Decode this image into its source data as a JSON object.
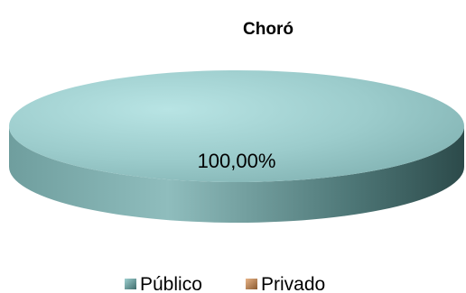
{
  "chart_data": {
    "type": "pie",
    "title": "Choró",
    "style": "3d",
    "slices": [
      {
        "label": "Público",
        "value": 100.0,
        "display": "100,00%",
        "color": "#8fc4c4"
      },
      {
        "label": "Privado",
        "value": 0.0,
        "display": "",
        "color": "#c8905c"
      }
    ],
    "legend": {
      "placement": "bottom",
      "entries": [
        {
          "label": "Público",
          "color": "#6fa8a8"
        },
        {
          "label": "Privado",
          "color": "#c8905c"
        }
      ]
    }
  }
}
